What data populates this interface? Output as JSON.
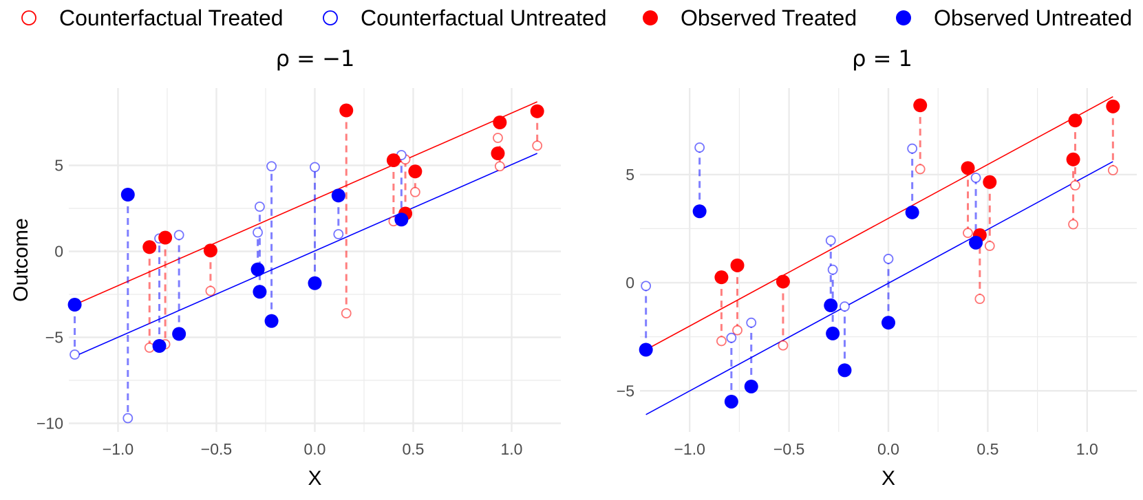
{
  "chart_data": {
    "type": "scatter",
    "legend": {
      "position": "top",
      "entries": [
        {
          "label": "Counterfactual Treated",
          "color": "#FF0000",
          "style": "open-circle"
        },
        {
          "label": "Counterfactual Untreated",
          "color": "#0000FF",
          "style": "open-circle"
        },
        {
          "label": "Observed Treated",
          "color": "#FF0000",
          "style": "filled-circle"
        },
        {
          "label": "Observed Untreated",
          "color": "#0000FF",
          "style": "filled-circle"
        }
      ]
    },
    "colors": {
      "treated": "#FF0000",
      "untreated": "#0000FF",
      "grid": "#EBEBEB",
      "tick_text": "#4D4D4D"
    },
    "grid": true,
    "panels": [
      {
        "title": "ρ = −1",
        "xlabel": "X",
        "ylabel": "Outcome",
        "xlim": [
          -1.25,
          1.25
        ],
        "ylim": [
          -10.5,
          9.5
        ],
        "xticks": [
          -1.0,
          -0.5,
          0.0,
          0.5,
          1.0
        ],
        "xtick_labels": [
          "−1.0",
          "−0.5",
          "0.0",
          "0.5",
          "1.0"
        ],
        "yticks": [
          -10,
          -5,
          0,
          5
        ],
        "ytick_labels": [
          "−10",
          "−5",
          "0",
          "5"
        ],
        "fit_lines": [
          {
            "group": "treated",
            "x": [
              -1.22,
              1.13
            ],
            "y": [
              -3.1,
              8.7
            ]
          },
          {
            "group": "untreated",
            "x": [
              -1.22,
              1.13
            ],
            "y": [
              -6.1,
              5.7
            ]
          }
        ],
        "observed_treated": [
          {
            "x": -0.84,
            "y": 0.25,
            "cf": -5.6
          },
          {
            "x": -0.76,
            "y": 0.8,
            "cf": -5.4
          },
          {
            "x": -0.53,
            "y": 0.05,
            "cf": -2.3
          },
          {
            "x": 0.16,
            "y": 8.2,
            "cf": -3.6
          },
          {
            "x": 0.4,
            "y": 5.3,
            "cf": 1.75
          },
          {
            "x": 0.46,
            "y": 2.2,
            "cf": 5.35
          },
          {
            "x": 0.51,
            "y": 4.65,
            "cf": 3.45
          },
          {
            "x": 0.93,
            "y": 5.7,
            "cf": 6.6
          },
          {
            "x": 0.94,
            "y": 7.5,
            "cf": 4.95
          },
          {
            "x": 1.13,
            "y": 8.15,
            "cf": 6.15
          }
        ],
        "observed_untreated": [
          {
            "x": -1.22,
            "y": -3.1,
            "cf": -6.0
          },
          {
            "x": -0.95,
            "y": 3.3,
            "cf": -9.7
          },
          {
            "x": -0.79,
            "y": -5.5,
            "cf": 0.75
          },
          {
            "x": -0.69,
            "y": -4.8,
            "cf": 0.95
          },
          {
            "x": -0.29,
            "y": -1.05,
            "cf": 1.1
          },
          {
            "x": -0.28,
            "y": -2.35,
            "cf": 2.6
          },
          {
            "x": -0.22,
            "y": -4.05,
            "cf": 4.95
          },
          {
            "x": 0.0,
            "y": -1.85,
            "cf": 4.9
          },
          {
            "x": 0.12,
            "y": 3.25,
            "cf": 1.0
          },
          {
            "x": 0.44,
            "y": 1.85,
            "cf": 5.6
          }
        ]
      },
      {
        "title": "ρ = 1",
        "xlabel": "X",
        "ylabel": "",
        "xlim": [
          -1.25,
          1.25
        ],
        "ylim": [
          -6.9,
          9.0
        ],
        "xticks": [
          -1.0,
          -0.5,
          0.0,
          0.5,
          1.0
        ],
        "xtick_labels": [
          "−1.0",
          "−0.5",
          "0.0",
          "0.5",
          "1.0"
        ],
        "yticks": [
          -5,
          0,
          5
        ],
        "ytick_labels": [
          "−5",
          "0",
          "5"
        ],
        "fit_lines": [
          {
            "group": "treated",
            "x": [
              -1.22,
              1.13
            ],
            "y": [
              -3.1,
              8.6
            ]
          },
          {
            "group": "untreated",
            "x": [
              -1.22,
              1.13
            ],
            "y": [
              -6.1,
              5.6
            ]
          }
        ],
        "observed_treated": [
          {
            "x": -0.84,
            "y": 0.25,
            "cf": -2.7
          },
          {
            "x": -0.76,
            "y": 0.8,
            "cf": -2.2
          },
          {
            "x": -0.53,
            "y": 0.05,
            "cf": -2.9
          },
          {
            "x": 0.16,
            "y": 8.2,
            "cf": 5.25
          },
          {
            "x": 0.4,
            "y": 5.3,
            "cf": 2.3
          },
          {
            "x": 0.46,
            "y": 2.2,
            "cf": -0.75
          },
          {
            "x": 0.51,
            "y": 4.65,
            "cf": 1.7
          },
          {
            "x": 0.93,
            "y": 5.7,
            "cf": 2.7
          },
          {
            "x": 0.94,
            "y": 7.5,
            "cf": 4.5
          },
          {
            "x": 1.13,
            "y": 8.15,
            "cf": 5.2
          }
        ],
        "observed_untreated": [
          {
            "x": -1.22,
            "y": -3.1,
            "cf": -0.15
          },
          {
            "x": -0.95,
            "y": 3.3,
            "cf": 6.25
          },
          {
            "x": -0.79,
            "y": -5.5,
            "cf": -2.55
          },
          {
            "x": -0.69,
            "y": -4.8,
            "cf": -1.85
          },
          {
            "x": -0.29,
            "y": -1.05,
            "cf": 1.95
          },
          {
            "x": -0.28,
            "y": -2.35,
            "cf": 0.6
          },
          {
            "x": -0.22,
            "y": -4.05,
            "cf": -1.1
          },
          {
            "x": 0.0,
            "y": -1.85,
            "cf": 1.1
          },
          {
            "x": 0.12,
            "y": 3.25,
            "cf": 6.2
          },
          {
            "x": 0.44,
            "y": 1.85,
            "cf": 4.85
          }
        ]
      }
    ]
  }
}
